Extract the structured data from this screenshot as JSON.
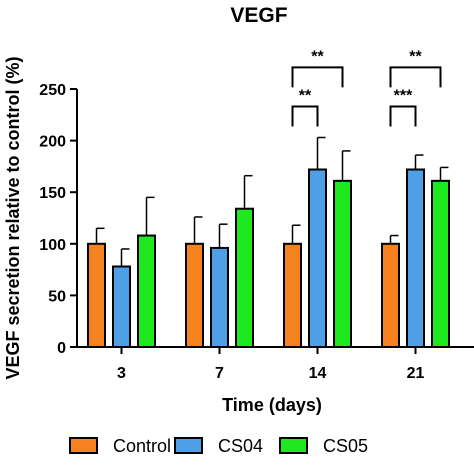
{
  "chart_data": {
    "type": "bar",
    "title": "VEGF",
    "xlabel": "Time (days)",
    "ylabel": "VEGF secretion relative to control (%)",
    "ylim": [
      0,
      250
    ],
    "yticks": [
      "0",
      "50",
      "100",
      "150",
      "200",
      "250"
    ],
    "categories": [
      "3",
      "7",
      "14",
      "21"
    ],
    "grid": false,
    "legend_position": "bottom",
    "series": [
      {
        "name": "Control",
        "color": "#f5821f",
        "values": [
          100,
          100,
          100,
          100
        ],
        "errors": [
          15,
          26,
          18,
          8
        ]
      },
      {
        "name": "CS04",
        "color": "#4f9fe6",
        "values": [
          78,
          96,
          172,
          172
        ],
        "errors": [
          17,
          23,
          31,
          14
        ]
      },
      {
        "name": "CS05",
        "color": "#1ee81e",
        "values": [
          108,
          134,
          161,
          161
        ],
        "errors": [
          37,
          32,
          29,
          13
        ]
      }
    ],
    "annotations": [
      {
        "category": "14",
        "from": "Control",
        "to": "CS04",
        "label": "**",
        "y_data": 233
      },
      {
        "category": "14",
        "from": "Control",
        "to": "CS05",
        "label": "**",
        "y_data": 271
      },
      {
        "category": "21",
        "from": "Control",
        "to": "CS04",
        "label": "***",
        "y_data": 233
      },
      {
        "category": "21",
        "from": "Control",
        "to": "CS05",
        "label": "**",
        "y_data": 271
      }
    ]
  }
}
